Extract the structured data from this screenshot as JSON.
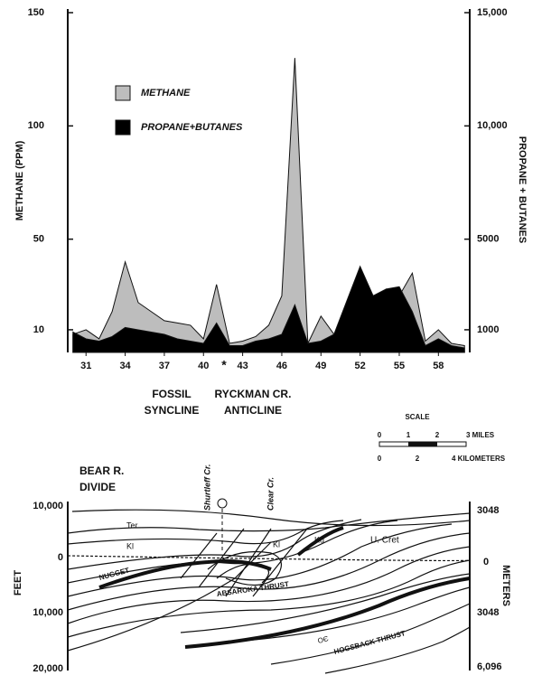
{
  "chart_data": {
    "type": "area",
    "ylabel": "METHANE (PPM)",
    "y2label": "PROPANE + BUTANES",
    "x": [
      30,
      31,
      32,
      33,
      34,
      35,
      36,
      37,
      38,
      39,
      40,
      41,
      42,
      43,
      44,
      45,
      46,
      47,
      48,
      49,
      50,
      51,
      52,
      53,
      54,
      55,
      56,
      57,
      58,
      59,
      60
    ],
    "xlim": [
      29.6,
      60.4
    ],
    "xticks": [
      31,
      34,
      37,
      40,
      43,
      46,
      49,
      52,
      55,
      58
    ],
    "ylim": [
      0,
      150
    ],
    "yticks": [
      10,
      50,
      100,
      150
    ],
    "y2lim": [
      0,
      15000
    ],
    "y2ticks": [
      1000,
      5000,
      {
        "value": 10000,
        "label": "10,000"
      },
      {
        "value": 15000,
        "label": "15,000"
      }
    ],
    "legend": "upper left",
    "series": [
      {
        "name": "METHANE",
        "color": "#bdbdbd",
        "values": [
          8,
          10,
          6,
          18,
          40,
          22,
          18,
          14,
          13,
          12,
          6,
          30,
          4,
          5,
          7,
          12,
          25,
          130,
          4,
          16,
          8,
          12,
          20,
          22,
          28,
          25,
          35,
          5,
          10,
          4,
          3
        ]
      },
      {
        "name": "PROPANE+BUTANES",
        "color": "#000000",
        "axis": "y2",
        "values": [
          900,
          600,
          500,
          700,
          1100,
          1000,
          900,
          800,
          600,
          500,
          400,
          1300,
          300,
          300,
          500,
          600,
          800,
          2100,
          400,
          500,
          800,
          2300,
          3800,
          2500,
          2800,
          2900,
          1800,
          300,
          600,
          300,
          200
        ]
      }
    ],
    "annotation": "*",
    "structures": [
      "FOSSIL",
      "SYNCLINE",
      "RYCKMAN CR.",
      "ANTICLINE"
    ]
  },
  "cross_section": {
    "scale_title": "SCALE",
    "miles": [
      "0",
      "1",
      "2",
      "3 MILES"
    ],
    "kilometers": [
      "0",
      "2",
      "4 KILOMETERS"
    ],
    "place": [
      "BEAR R.",
      "DIVIDE"
    ],
    "creeks": [
      "Shurtleff Cr.",
      "Clear Cr."
    ],
    "units": [
      "Ter.",
      "Kl",
      "Kl",
      "Ku",
      "U. Cret",
      "NUGGET",
      "ABSAROKA THRUST",
      "OЄ",
      "HOGSBACK THRUST"
    ],
    "feet_label": "FEET",
    "meters_label": "METERS",
    "feet_ticks": [
      "10,000",
      "0",
      "10,000",
      "20,000"
    ],
    "meter_ticks": [
      "3048",
      "0",
      "3048",
      "6,096"
    ]
  }
}
